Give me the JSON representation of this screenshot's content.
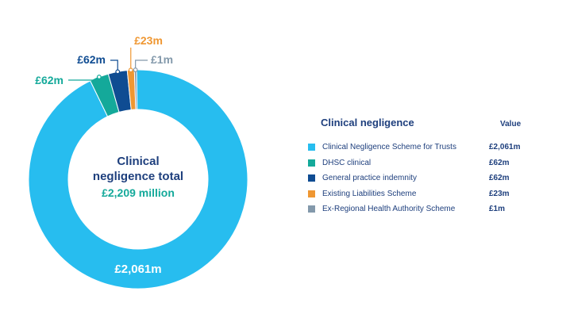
{
  "chart_data": {
    "type": "pie",
    "title": "Clinical negligence total",
    "total_text": "£2,209 million",
    "unit": "£m",
    "slices": [
      {
        "name": "Clinical Negligence Scheme for Trusts",
        "value": 2061,
        "label": "£2,061m",
        "color": "#27bdef"
      },
      {
        "name": "DHSC clinical",
        "value": 62,
        "label": "£62m",
        "color": "#14a99a"
      },
      {
        "name": "General practice indemnity",
        "value": 62,
        "label": "£62m",
        "color": "#0f4c92"
      },
      {
        "name": "Existing Liabilities Scheme",
        "value": 23,
        "label": "£23m",
        "color": "#ef9732"
      },
      {
        "name": "Ex-Regional Health Authority Scheme",
        "value": 1,
        "label": "£1m",
        "color": "#8399ab"
      }
    ]
  },
  "center": {
    "line1": "Clinical",
    "line2": "negligence total",
    "value": "£2,209 million"
  },
  "legend": {
    "title": "Clinical negligence",
    "value_header": "Value"
  },
  "colors": {
    "title_navy": "#1e3f7d",
    "teal_text": "#14a99a"
  }
}
